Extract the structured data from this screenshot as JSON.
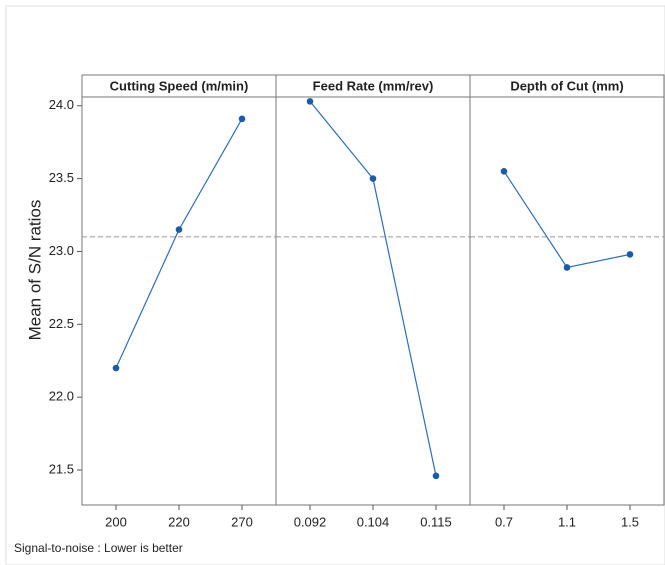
{
  "chart_data": {
    "type": "line",
    "ylabel": "Mean of S/N ratios",
    "footnote": "Signal-to-noise : Lower is better",
    "color": "#2f6db5",
    "marker_color": "#1a5aa6",
    "reference_line": 23.1,
    "ylim": [
      21.26,
      24.06
    ],
    "yticks": [
      21.5,
      {
        "value": 22,
        "label": "22.0"
      },
      22.5,
      {
        "value": 23,
        "label": "23.0"
      },
      23.5,
      {
        "value": 24,
        "label": "24.0"
      }
    ],
    "panels": [
      {
        "title": "Cutting Speed (m/min)",
        "categories": [
          "200",
          "220",
          "270"
        ],
        "values": [
          22.2,
          23.15,
          23.91
        ]
      },
      {
        "title": "Feed Rate (mm/rev)",
        "categories": [
          "0.092",
          "0.104",
          "0.115"
        ],
        "values": [
          24.03,
          23.5,
          21.46
        ]
      },
      {
        "title": "Depth of Cut (mm)",
        "categories": [
          "0.7",
          "1.1",
          "1.5"
        ],
        "values": [
          23.55,
          22.89,
          22.98
        ]
      }
    ]
  }
}
